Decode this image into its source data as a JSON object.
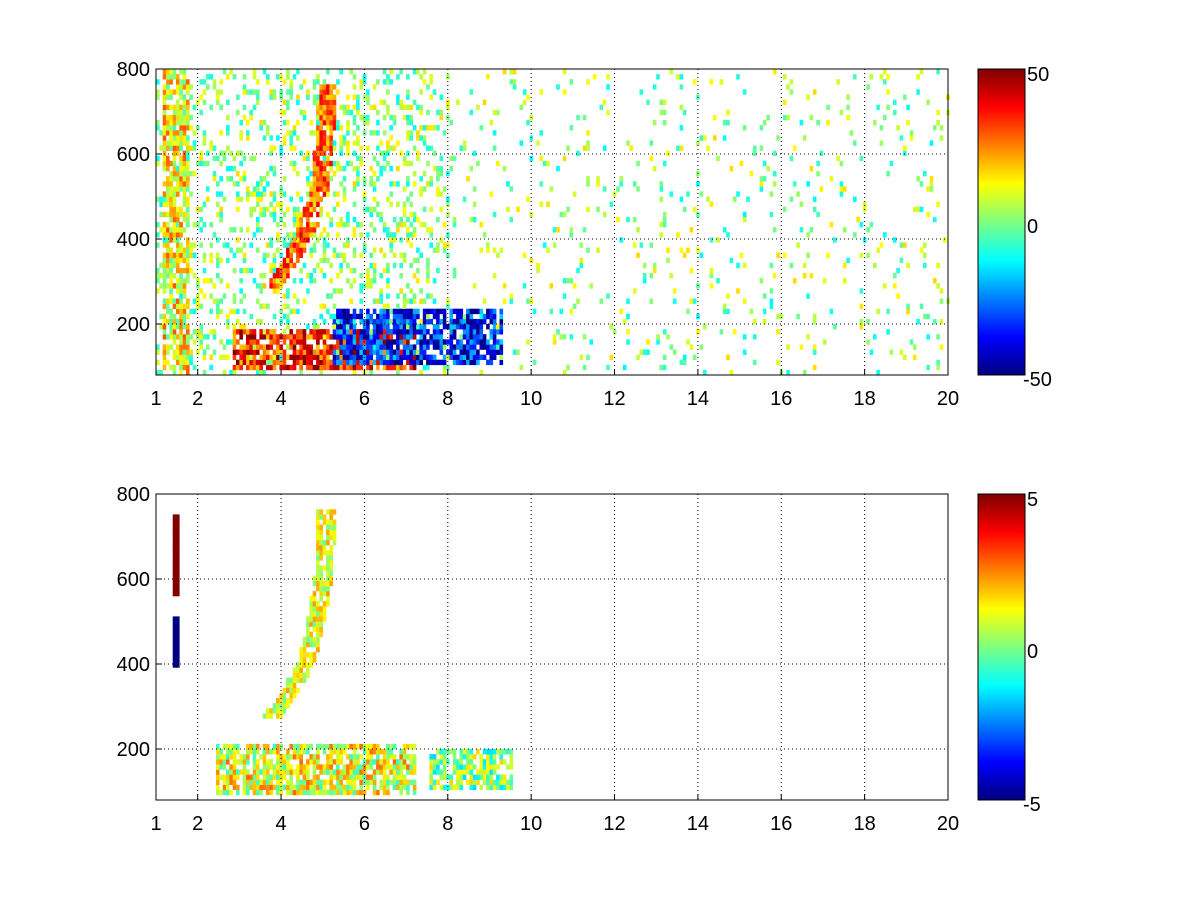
{
  "chart_data": [
    {
      "type": "heatmap",
      "title": "",
      "xlabel": "",
      "ylabel": "",
      "xlim": [
        1,
        20
      ],
      "ylim": [
        80,
        800
      ],
      "x_ticks": [
        1,
        2,
        4,
        6,
        8,
        10,
        12,
        14,
        16,
        18,
        20
      ],
      "y_ticks": [
        200,
        400,
        600,
        800
      ],
      "grid": true,
      "colormap": "jet",
      "clim": [
        -50,
        50
      ],
      "colorbar_ticks": [
        50,
        0,
        -50
      ],
      "features": [
        {
          "kind": "curve",
          "points": [
            [
              3.75,
              280
            ],
            [
              4.2,
              340
            ],
            [
              4.6,
              420
            ],
            [
              4.9,
              520
            ],
            [
              5.0,
              620
            ],
            [
              5.1,
              760
            ]
          ],
          "value": 28
        },
        {
          "kind": "band",
          "x_range": [
            2.8,
            7.2
          ],
          "y_range": [
            90,
            180
          ],
          "value": 35
        },
        {
          "kind": "band",
          "x_range": [
            5.2,
            9.3
          ],
          "y_range": [
            100,
            230
          ],
          "value": -35
        },
        {
          "kind": "band",
          "x_range": [
            1.1,
            1.8
          ],
          "y_range": [
            80,
            800
          ],
          "value": 12
        }
      ]
    },
    {
      "type": "heatmap",
      "title": "",
      "xlabel": "",
      "ylabel": "",
      "xlim": [
        1,
        20
      ],
      "ylim": [
        80,
        800
      ],
      "x_ticks": [
        1,
        2,
        4,
        6,
        8,
        10,
        12,
        14,
        16,
        18,
        20
      ],
      "y_ticks": [
        200,
        400,
        600,
        800
      ],
      "grid": true,
      "colormap": "jet",
      "clim": [
        -5,
        5
      ],
      "colorbar_ticks": [
        5,
        0,
        -5
      ],
      "features": [
        {
          "kind": "curve",
          "points": [
            [
              3.75,
              270
            ],
            [
              4.2,
              330
            ],
            [
              4.6,
              410
            ],
            [
              4.85,
              520
            ],
            [
              5.0,
              620
            ],
            [
              5.05,
              760
            ]
          ],
          "value": 1
        },
        {
          "kind": "band",
          "x_range": [
            2.4,
            7.2
          ],
          "y_range": [
            90,
            200
          ],
          "value": 1
        },
        {
          "kind": "band",
          "x_range": [
            7.5,
            9.5
          ],
          "y_range": [
            100,
            190
          ],
          "value": 0
        },
        {
          "kind": "line",
          "x": 1.45,
          "y_range": [
            560,
            750
          ],
          "value": 5
        },
        {
          "kind": "line",
          "x": 1.45,
          "y_range": [
            390,
            510
          ],
          "value": -5
        }
      ]
    }
  ]
}
